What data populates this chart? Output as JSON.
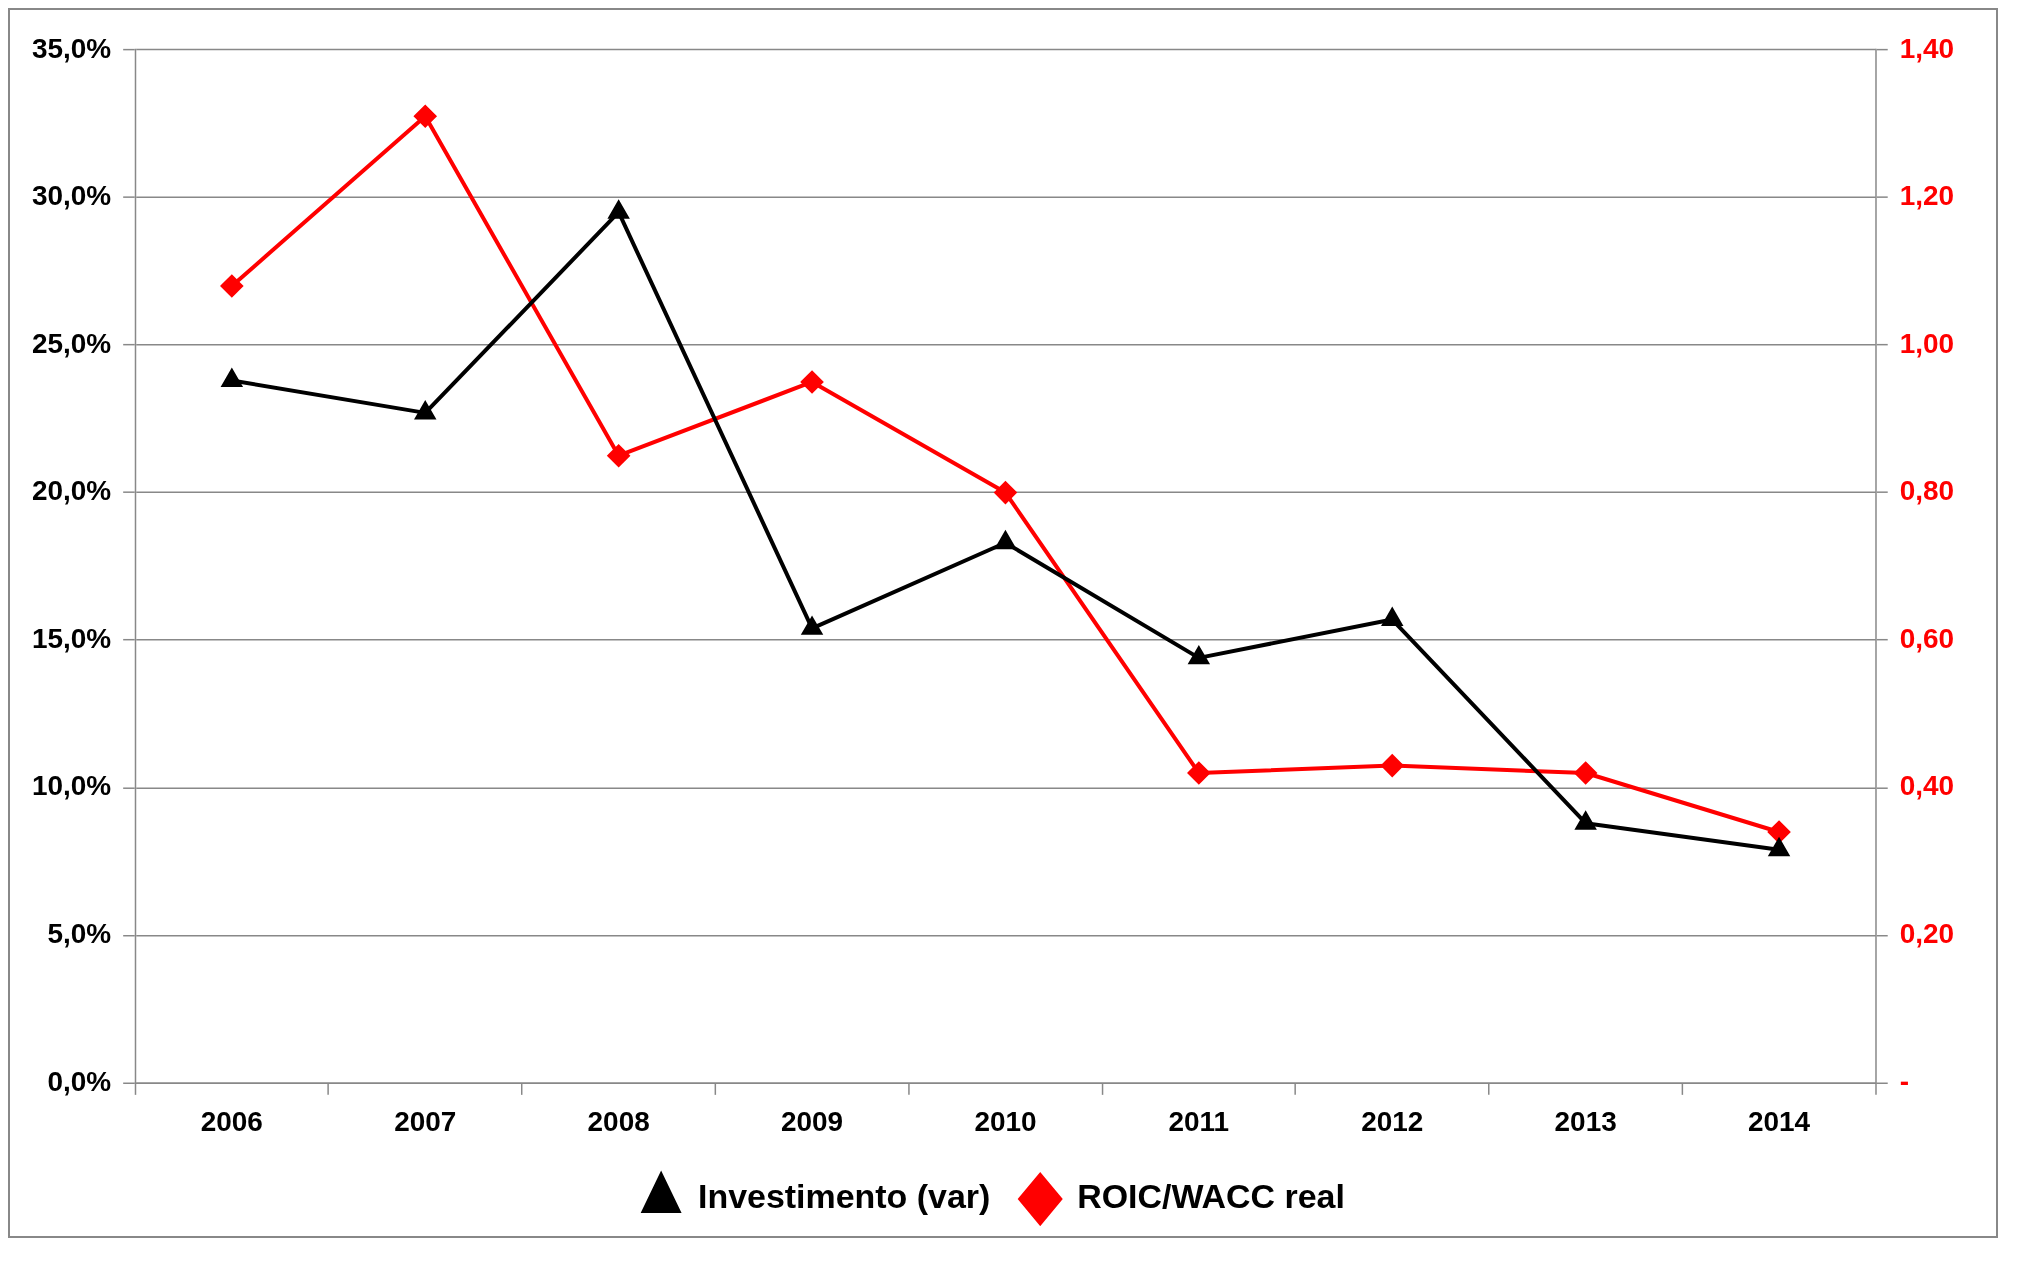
{
  "chart_data": {
    "type": "line",
    "categories": [
      "2006",
      "2007",
      "2008",
      "2009",
      "2010",
      "2011",
      "2012",
      "2013",
      "2014"
    ],
    "series": [
      {
        "name": "Investimento (var)",
        "color": "#000000",
        "marker": "triangle",
        "values": [
          23.8,
          22.7,
          29.5,
          15.4,
          18.3,
          14.4,
          15.7,
          8.8,
          7.9
        ]
      },
      {
        "name": "ROIC/WACC real",
        "color": "#ff0000",
        "marker": "diamond",
        "axis": "y2",
        "values": [
          1.08,
          1.31,
          0.85,
          0.95,
          0.8,
          0.42,
          0.43,
          0.42,
          0.34
        ]
      }
    ],
    "ylim": [
      0,
      35
    ],
    "yticks": [
      {
        "value": 0,
        "label": "0,0%"
      },
      {
        "value": 5,
        "label": "5,0%"
      },
      {
        "value": 10,
        "label": "10,0%"
      },
      {
        "value": 15,
        "label": "15,0%"
      },
      {
        "value": 20,
        "label": "20,0%"
      },
      {
        "value": 25,
        "label": "25,0%"
      },
      {
        "value": 30,
        "label": "30,0%"
      },
      {
        "value": 35,
        "label": "35,0%"
      }
    ],
    "y2lim": [
      0,
      1.4
    ],
    "y2ticks": [
      {
        "value": 0,
        "label": "-"
      },
      {
        "value": 0.2,
        "label": "0,20"
      },
      {
        "value": 0.4,
        "label": "0,40"
      },
      {
        "value": 0.6,
        "label": "0,60"
      },
      {
        "value": 0.8,
        "label": "0,80"
      },
      {
        "value": 1.0,
        "label": "1,00"
      },
      {
        "value": 1.2,
        "label": "1,20"
      },
      {
        "value": 1.4,
        "label": "1,40"
      }
    ],
    "grid": "y",
    "legend": "bottom",
    "line_style": "solid"
  }
}
